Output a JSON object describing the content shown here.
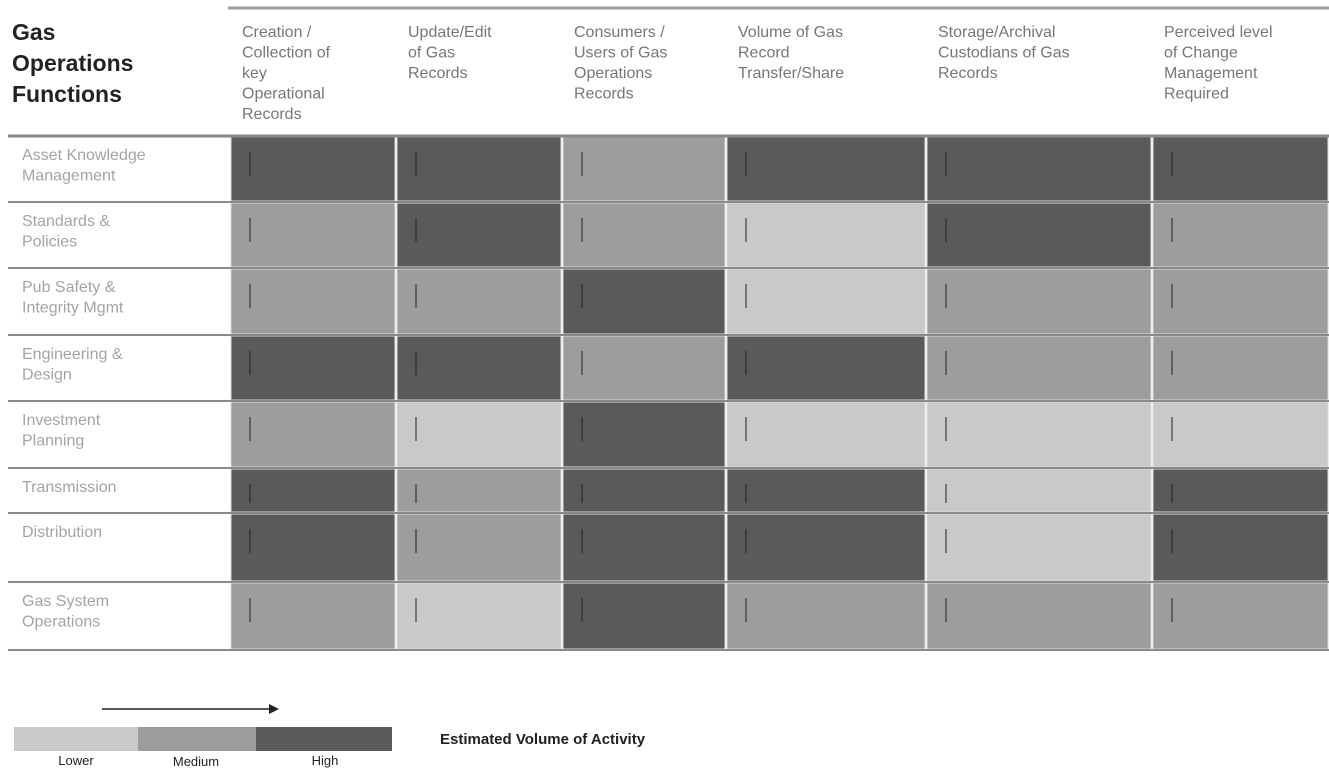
{
  "chart_data": {
    "type": "heatmap",
    "title": "Gas Operations Functions",
    "columns": [
      "Creation / Collection of key Operational Records",
      "Update/Edit of Gas Records",
      "Consumers / Users of Gas Operations Records",
      "Volume of Gas Record Transfer/Share",
      "Storage/Archival Custodians of Gas Records",
      "Perceived level of Change Management Required"
    ],
    "rows": [
      "Asset Knowledge Management",
      "Standards & Policies",
      "Pub Safety & Integrity Mgmt",
      "Engineering & Design",
      "Investment Planning",
      "Transmission",
      "Distribution",
      "Gas System Operations"
    ],
    "levels": [
      "Lower",
      "Medium",
      "High"
    ],
    "values": [
      [
        3,
        3,
        2,
        3,
        3,
        3
      ],
      [
        2,
        3,
        2,
        1,
        3,
        2
      ],
      [
        2,
        2,
        3,
        1,
        2,
        2
      ],
      [
        3,
        3,
        2,
        3,
        2,
        2
      ],
      [
        2,
        1,
        3,
        1,
        1,
        1
      ],
      [
        3,
        2,
        3,
        3,
        1,
        3
      ],
      [
        3,
        2,
        3,
        3,
        1,
        3
      ],
      [
        2,
        1,
        3,
        2,
        2,
        2
      ]
    ],
    "legend": {
      "label": "Estimated Volume of Activity",
      "placement": "bottom-left"
    },
    "colors": {
      "Lower": "#c9c9c9",
      "Medium": "#9d9d9d",
      "High": "#5a5a5a",
      "row_label_text": "#a4a4a4",
      "header_text": "#777777",
      "title_text": "#222222"
    }
  }
}
